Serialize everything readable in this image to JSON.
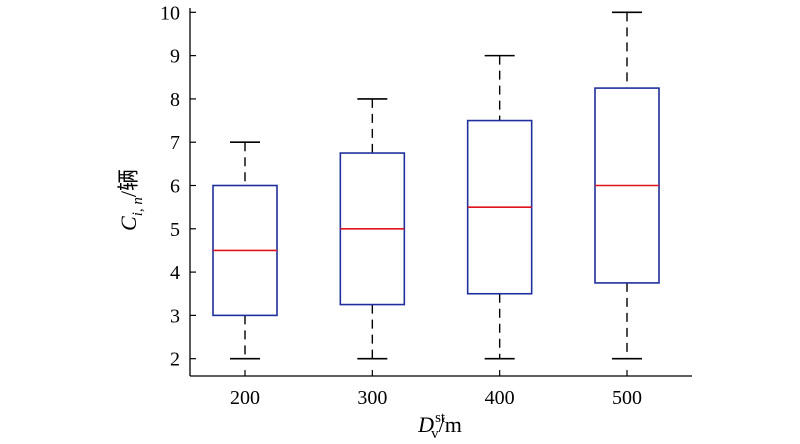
{
  "chart_data": {
    "type": "box",
    "categories": [
      "200",
      "300",
      "400",
      "500"
    ],
    "boxes": [
      {
        "min": 2,
        "q1": 3,
        "median": 4.5,
        "q3": 6,
        "max": 7
      },
      {
        "min": 2,
        "q1": 3.25,
        "median": 5,
        "q3": 6.75,
        "max": 8
      },
      {
        "min": 2,
        "q1": 3.5,
        "median": 5.5,
        "q3": 7.5,
        "max": 9
      },
      {
        "min": 2,
        "q1": 3.75,
        "median": 6,
        "q3": 8.25,
        "max": 10
      }
    ],
    "ylim": [
      1.6,
      10.1
    ],
    "yticks": [
      2,
      3,
      4,
      5,
      6,
      7,
      8,
      9,
      10
    ],
    "xlabel": {
      "main": "D",
      "sub": "v",
      "sup": "st",
      "unit": "/m"
    },
    "ylabel": {
      "main": "C",
      "sub": "i, n",
      "unit": "/辆"
    },
    "grid": false,
    "colors": {
      "box": "#1f2f9c",
      "median": "#e0141e",
      "whisker": "#000000",
      "axis": "#000000"
    }
  }
}
